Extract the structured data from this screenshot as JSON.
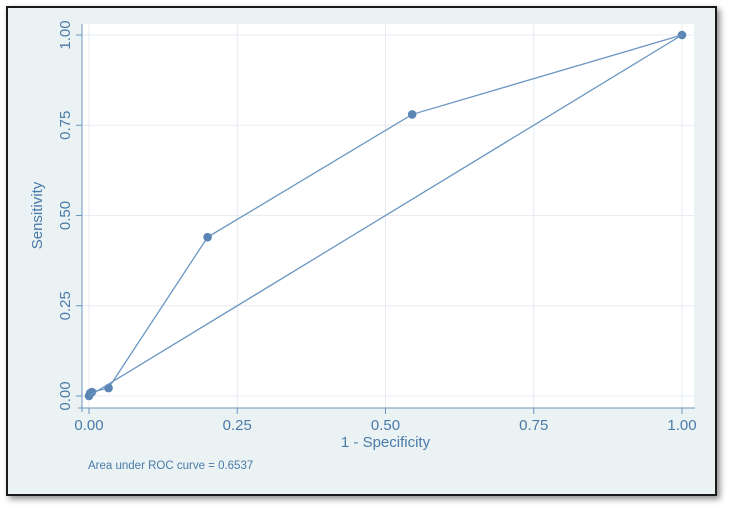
{
  "chart_data": {
    "type": "line",
    "xlabel": "1 - Specificity",
    "ylabel": "Sensitivity",
    "xlim": [
      0,
      1
    ],
    "ylim": [
      0,
      1
    ],
    "x_ticks": [
      "0.00",
      "0.25",
      "0.50",
      "0.75",
      "1.00"
    ],
    "y_ticks": [
      "0.00",
      "0.25",
      "0.50",
      "0.75",
      "1.00"
    ],
    "grid": true,
    "series": [
      {
        "points": [
          {
            "x": 0.0,
            "y": 0.0
          },
          {
            "x": 0.002,
            "y": 0.008
          },
          {
            "x": 0.005,
            "y": 0.011
          },
          {
            "x": 0.033,
            "y": 0.022
          },
          {
            "x": 0.2,
            "y": 0.44
          },
          {
            "x": 0.545,
            "y": 0.78
          },
          {
            "x": 1.0,
            "y": 1.0
          }
        ]
      },
      {
        "points": [
          {
            "x": 0.0,
            "y": 0.0
          },
          {
            "x": 1.0,
            "y": 1.0
          }
        ]
      }
    ],
    "colors": {
      "line": "#6b96c2",
      "marker": "#5a85b5",
      "text": "#4a7ba8",
      "grid": "#e6ecf2",
      "plot_bg": "#ffffff",
      "frame_bg": "#eaf2f3"
    },
    "annotation": "Area under ROC curve = 0.6537"
  }
}
